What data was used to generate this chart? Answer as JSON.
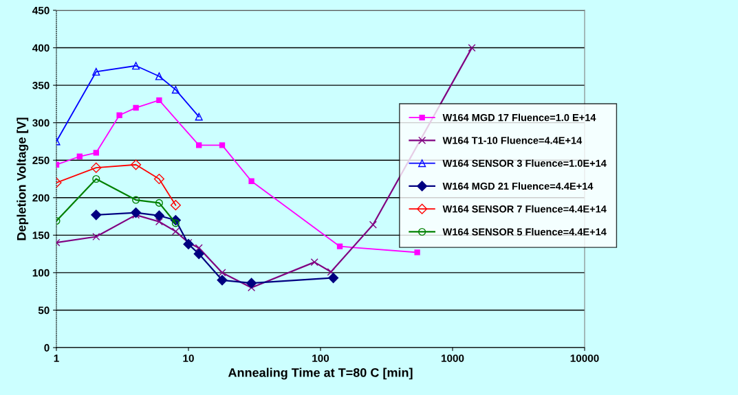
{
  "chart_data": {
    "type": "line",
    "xlabel": "Annealing Time at T=80 C [min]",
    "ylabel": "Depletion Voltage [V]",
    "log": "x",
    "xlim": [
      1,
      10000
    ],
    "xticks": [
      1,
      10,
      100,
      1000,
      10000
    ],
    "ylim": [
      0,
      450
    ],
    "yticks": [
      0,
      50,
      100,
      150,
      200,
      250,
      300,
      350,
      400,
      450
    ],
    "grid": "y",
    "legend": "right",
    "line_style": "solid",
    "series": [
      {
        "name": "W164 MGD 17 Fluence=1.0 E+14",
        "color": "#ff00ff",
        "marker": "square",
        "x": [
          1,
          1.5,
          2,
          3,
          4,
          6,
          12,
          18,
          30,
          140,
          540
        ],
        "values": [
          244,
          255,
          260,
          310,
          320,
          330,
          270,
          270,
          222,
          135,
          127
        ]
      },
      {
        "name": "W164 T1-10 Fluence=4.4E+14",
        "color": "#800080",
        "marker": "cross",
        "x": [
          1,
          2,
          4,
          6,
          8,
          10,
          12,
          18,
          30,
          90,
          120,
          250,
          1400
        ],
        "values": [
          140,
          148,
          177,
          168,
          155,
          140,
          133,
          100,
          80,
          114,
          101,
          164,
          400
        ]
      },
      {
        "name": "W164 SENSOR 3 Fluence=1.0E+14",
        "color": "#0000ff",
        "marker": "triangle",
        "x": [
          1,
          2,
          4,
          6,
          8,
          12
        ],
        "values": [
          275,
          368,
          376,
          362,
          344,
          308
        ]
      },
      {
        "name": "W164 MGD 21 Fluence=4.4E+14",
        "color": "#000080",
        "marker": "diamond",
        "x": [
          2,
          4,
          6,
          8,
          10,
          12,
          18,
          30,
          125
        ],
        "values": [
          177,
          180,
          176,
          170,
          138,
          125,
          90,
          86,
          93
        ]
      },
      {
        "name": "W164 SENSOR 7 Fluence=4.4E+14",
        "color": "#ff0000",
        "marker": "diamond",
        "x": [
          1,
          2,
          4,
          6,
          8
        ],
        "values": [
          220,
          240,
          244,
          225,
          190
        ]
      },
      {
        "name": "W164 SENSOR 5 Fluence=4.4E+14",
        "color": "#008000",
        "marker": "circle",
        "x": [
          1,
          2,
          4,
          6,
          8
        ],
        "values": [
          169,
          225,
          197,
          193,
          166
        ]
      }
    ]
  }
}
